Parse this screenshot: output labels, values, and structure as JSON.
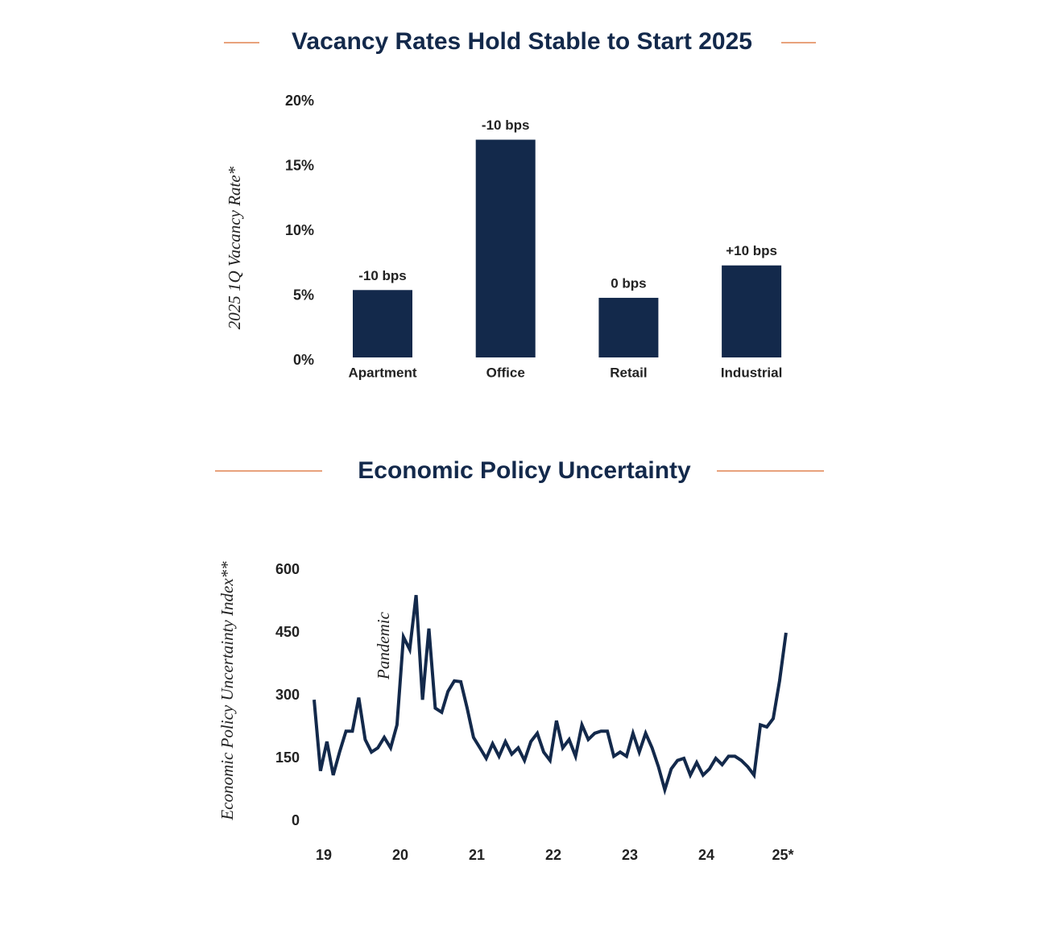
{
  "chart_data": [
    {
      "type": "bar",
      "title": "Vacancy Rates Hold Stable to Start 2025",
      "y_label": "2025 1Q Vacancy Rate*",
      "categories": [
        "Apartment",
        "Office",
        "Retail",
        "Industrial"
      ],
      "values": [
        5.2,
        16.8,
        4.6,
        7.1
      ],
      "bar_labels": [
        "-10 bps",
        "-10 bps",
        "0 bps",
        "+10 bps"
      ],
      "color": "#13294b",
      "ylim": [
        0,
        20
      ],
      "yticks": [
        {
          "value": 0,
          "label": "0%"
        },
        {
          "value": 5,
          "label": "5%"
        },
        {
          "value": 10,
          "label": "10%"
        },
        {
          "value": 15,
          "label": "15%"
        },
        {
          "value": 20,
          "label": "20%"
        }
      ],
      "grid": false
    },
    {
      "type": "line",
      "title": "Economic Policy Uncertainty",
      "y_label": "Economic Policy Uncertainty Index**",
      "annotation": "Pandemic",
      "x": [
        2019,
        2019.083,
        2019.167,
        2019.25,
        2019.333,
        2019.417,
        2019.5,
        2019.583,
        2019.667,
        2019.75,
        2019.833,
        2019.917,
        2020,
        2020.083,
        2020.167,
        2020.25,
        2020.333,
        2020.417,
        2020.5,
        2020.583,
        2020.667,
        2020.75,
        2020.833,
        2020.917,
        2021,
        2021.083,
        2021.167,
        2021.25,
        2021.333,
        2021.417,
        2021.5,
        2021.583,
        2021.667,
        2021.75,
        2021.833,
        2021.917,
        2022,
        2022.083,
        2022.167,
        2022.25,
        2022.333,
        2022.417,
        2022.5,
        2022.583,
        2022.667,
        2022.75,
        2022.833,
        2022.917,
        2023,
        2023.083,
        2023.167,
        2023.25,
        2023.333,
        2023.417,
        2023.5,
        2023.583,
        2023.667,
        2023.75,
        2023.833,
        2023.917,
        2024,
        2024.083,
        2024.167,
        2024.25,
        2024.333,
        2024.417,
        2024.5,
        2024.583,
        2024.667,
        2024.75,
        2024.833,
        2024.917,
        2025,
        2025.083,
        2025.167
      ],
      "series": [
        {
          "name": "Economic Policy Uncertainty Index",
          "color": "#13294b",
          "values": [
            290,
            120,
            190,
            110,
            165,
            215,
            215,
            295,
            195,
            165,
            175,
            200,
            175,
            230,
            440,
            410,
            540,
            290,
            460,
            270,
            260,
            310,
            335,
            333,
            270,
            200,
            175,
            150,
            185,
            155,
            190,
            160,
            175,
            145,
            190,
            210,
            165,
            145,
            240,
            175,
            195,
            155,
            230,
            195,
            210,
            215,
            215,
            155,
            165,
            155,
            210,
            165,
            210,
            175,
            130,
            75,
            125,
            145,
            150,
            110,
            140,
            110,
            125,
            150,
            135,
            155,
            155,
            145,
            130,
            110,
            230,
            225,
            245,
            335,
            450
          ]
        }
      ],
      "xlim": [
        2019,
        2025.2
      ],
      "xticks": [
        {
          "value": 2019,
          "label": "19"
        },
        {
          "value": 2020,
          "label": "20"
        },
        {
          "value": 2021,
          "label": "21"
        },
        {
          "value": 2022,
          "label": "22"
        },
        {
          "value": 2023,
          "label": "23"
        },
        {
          "value": 2024,
          "label": "24"
        },
        {
          "value": 2025,
          "label": "25*"
        }
      ],
      "ylim": [
        0,
        600
      ],
      "yticks": [
        0,
        150,
        300,
        450,
        600
      ],
      "grid": false
    }
  ]
}
